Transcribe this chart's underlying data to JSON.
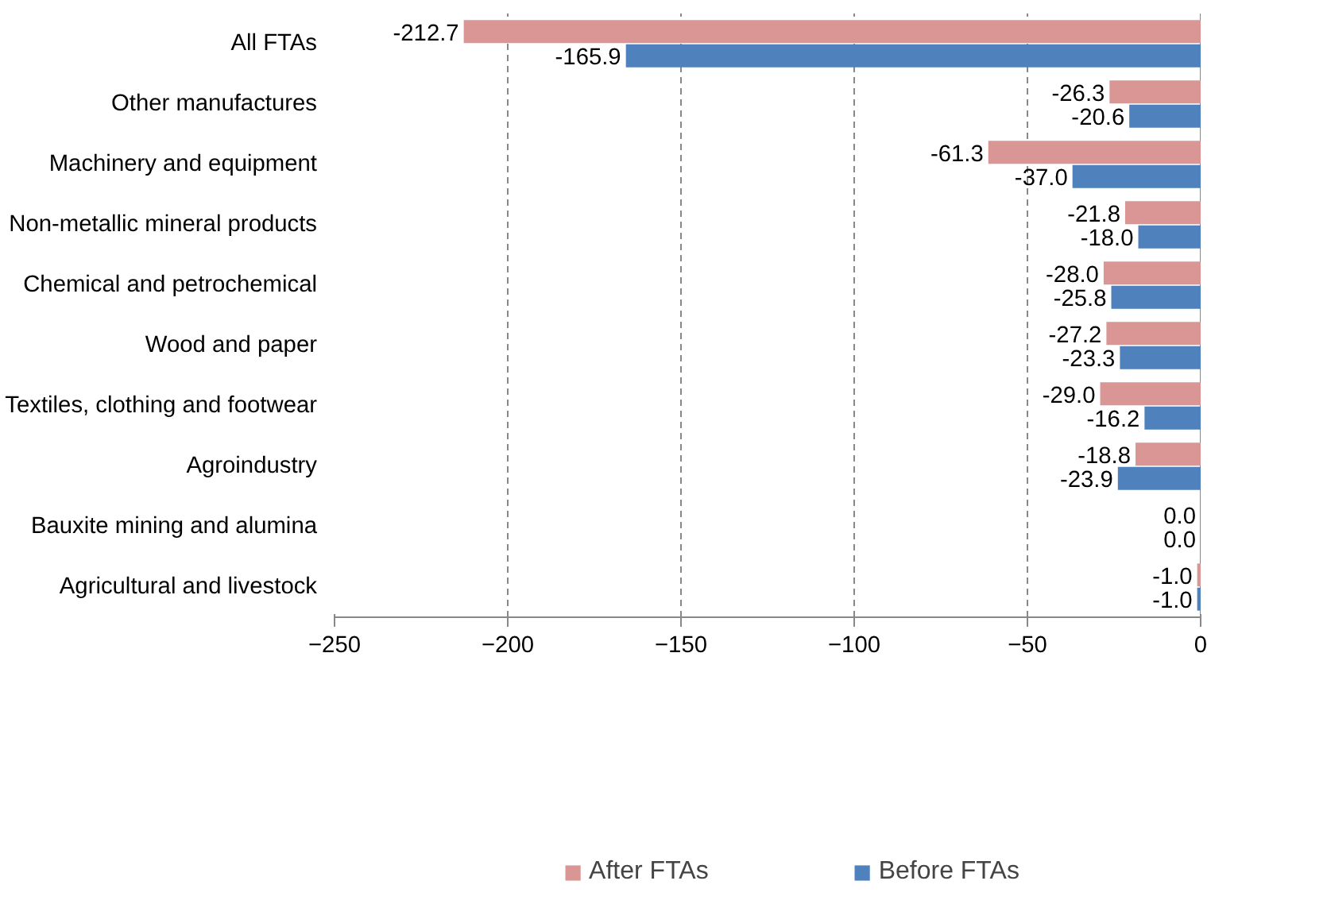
{
  "chart_data": {
    "type": "bar",
    "orientation": "horizontal",
    "categories": [
      "All FTAs",
      "Other manufactures",
      "Machinery and equipment",
      "Non-metallic mineral products",
      "Chemical and petrochemical",
      "Wood and paper",
      "Textiles, clothing and footwear",
      "Agroindustry",
      "Bauxite mining and alumina",
      "Agricultural and livestock"
    ],
    "series": [
      {
        "name": "After FTAs",
        "color": "#d99694",
        "values": [
          -212.7,
          -26.3,
          -61.3,
          -21.8,
          -28.0,
          -27.2,
          -29.0,
          -18.8,
          0.0,
          -1.0
        ],
        "value_labels": [
          "-212.7",
          "-26.3",
          "-61.3",
          "-21.8",
          "-28.0",
          "-27.2",
          "-29.0",
          "-18.8",
          "0.0",
          "-1.0"
        ]
      },
      {
        "name": "Before FTAs",
        "color": "#4f81bd",
        "values": [
          -165.9,
          -20.6,
          -37.0,
          -18.0,
          -25.8,
          -23.3,
          -16.2,
          -23.9,
          0.0,
          -1.0
        ],
        "value_labels": [
          "-165.9",
          "-20.6",
          "-37.0",
          "-18.0",
          "-25.8",
          "-23.3",
          "-16.2",
          "-23.9",
          "0.0",
          "-1.0"
        ]
      }
    ],
    "xlim": [
      -250,
      0
    ],
    "xticks": [
      -250,
      -200,
      -150,
      -100,
      -50,
      0
    ],
    "grid": "x",
    "legend": "bottom"
  }
}
